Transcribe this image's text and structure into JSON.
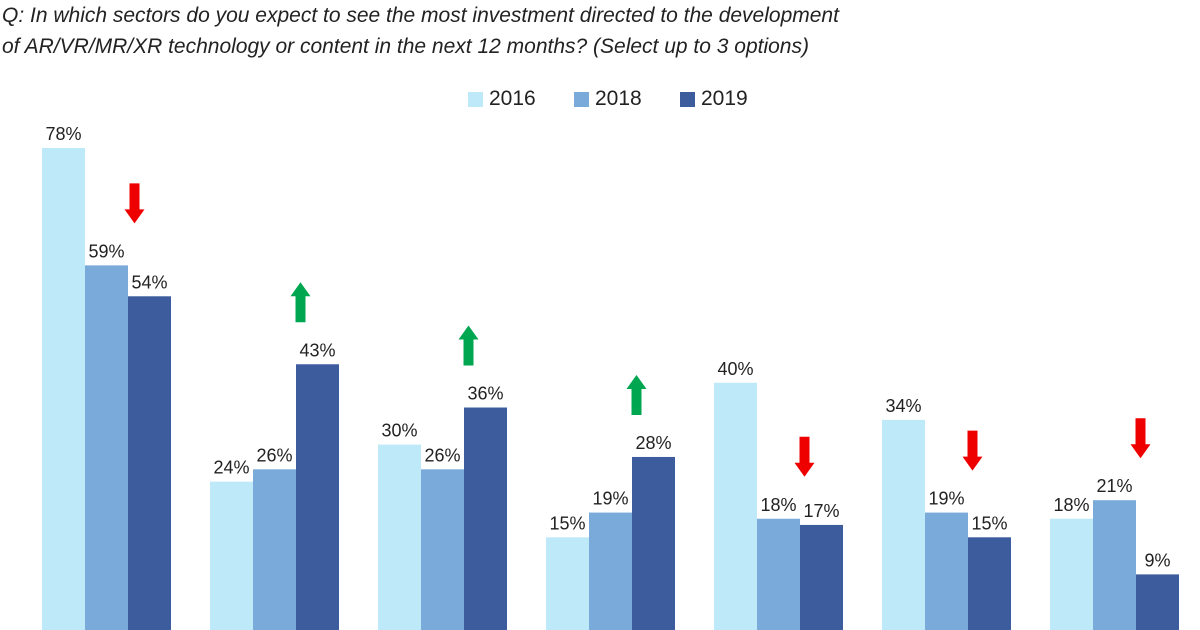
{
  "chart_data": {
    "type": "bar",
    "title": "Q: In which sectors do you expect to see the most investment directed to the development of AR/VR/MR/XR technology or content in the next 12 months? (Select up to 3 options)",
    "title_lines": [
      "Q: In which sectors do you expect to see the most investment directed to the development",
      "of AR/VR/MR/XR technology or content in the next 12 months? (Select up to 3 options)"
    ],
    "xlabel": "",
    "ylabel": "",
    "ylim": [
      0,
      80
    ],
    "grid": false,
    "legend_position": "top-center",
    "value_suffix": "%",
    "categories": [
      "",
      "",
      "",
      "",
      "",
      "",
      ""
    ],
    "series": [
      {
        "name": "2016",
        "color": "#bde9f8",
        "values": [
          78,
          24,
          30,
          15,
          40,
          34,
          18
        ]
      },
      {
        "name": "2018",
        "color": "#7aaad9",
        "values": [
          59,
          26,
          26,
          19,
          18,
          19,
          21
        ]
      },
      {
        "name": "2019",
        "color": "#3c5c9e",
        "values": [
          54,
          43,
          36,
          28,
          17,
          15,
          9
        ]
      }
    ],
    "trend_arrows": [
      {
        "group": 0,
        "direction": "down",
        "color": "#ee0000"
      },
      {
        "group": 1,
        "direction": "up",
        "color": "#00a650"
      },
      {
        "group": 2,
        "direction": "up",
        "color": "#00a650"
      },
      {
        "group": 3,
        "direction": "up",
        "color": "#00a650"
      },
      {
        "group": 4,
        "direction": "down",
        "color": "#ee0000"
      },
      {
        "group": 5,
        "direction": "down",
        "color": "#ee0000"
      },
      {
        "group": 6,
        "direction": "down",
        "color": "#ee0000"
      }
    ]
  }
}
